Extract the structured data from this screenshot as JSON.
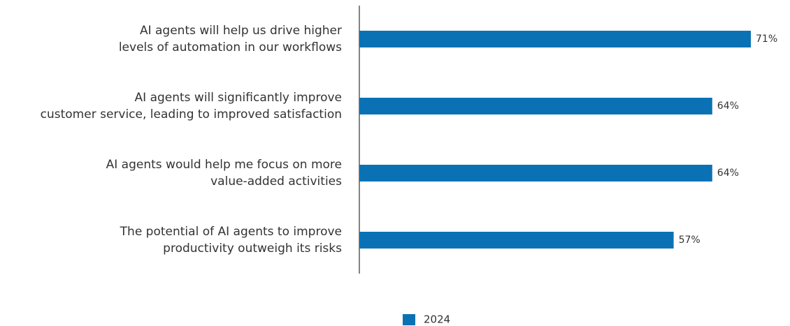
{
  "chart_data": {
    "type": "bar",
    "orientation": "horizontal",
    "categories": [
      [
        "AI agents will help us drive higher",
        "levels of automation in our workflows"
      ],
      [
        "AI agents will significantly improve",
        "customer service, leading to improved satisfaction"
      ],
      [
        "AI agents would help me focus on more",
        "value-added activities"
      ],
      [
        "The potential of AI agents to improve",
        "productivity outweigh its risks"
      ]
    ],
    "series": [
      {
        "name": "2024",
        "color": "#0a72b4",
        "values": [
          71,
          64,
          64,
          57
        ],
        "value_labels": [
          "71%",
          "64%",
          "64%",
          "57%"
        ]
      }
    ],
    "legend": "bottom"
  }
}
